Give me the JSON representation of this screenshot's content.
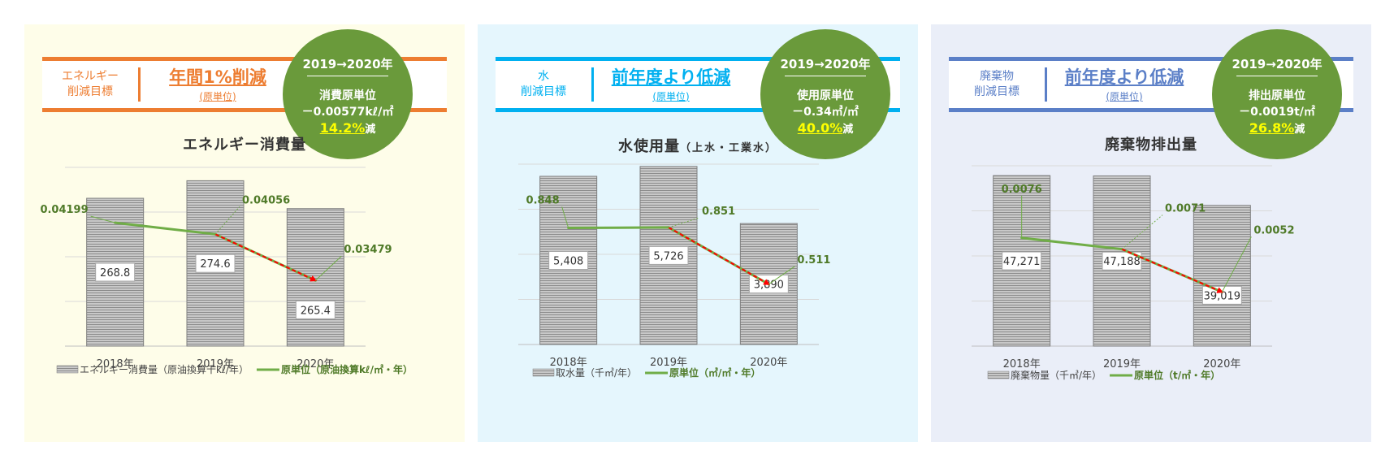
{
  "panels": [
    {
      "header": {
        "category": "エネルギー\n削減目標",
        "target": "年間1%削減",
        "unit_note": "(原単位)",
        "accent": "#ed7d31"
      },
      "circle": {
        "period": "2019→2020年",
        "label": "消費原単位",
        "value": "－0.00577kℓ/㎡",
        "percent": "14.2%",
        "reduced": "減"
      },
      "title": "エネルギー消費量",
      "title_sub": "",
      "bg": "#fefde9",
      "chart_data": {
        "type": "bar",
        "categories": [
          "2018年",
          "2019年",
          "2020年"
        ],
        "series": [
          {
            "name": "エネルギー消費量（原油換算千kℓ/年）",
            "type": "bar",
            "values": [
              268.8,
              274.6,
              265.4
            ],
            "labels": [
              "268.8",
              "274.6",
              "265.4"
            ]
          },
          {
            "name": "原単位（原油換算kℓ/㎡・年）",
            "type": "line",
            "values": [
              0.04199,
              0.04056,
              0.03479
            ],
            "labels": [
              "0.04199",
              "0.04056",
              "0.03479"
            ]
          }
        ],
        "grid": true,
        "legend": "bottom"
      }
    },
    {
      "header": {
        "category": "水\n削減目標",
        "target": "前年度より低減",
        "unit_note": "(原単位)",
        "accent": "#00b0f0"
      },
      "circle": {
        "period": "2019→2020年",
        "label": "使用原単位",
        "value": "－0.34㎥/㎡",
        "percent": "40.0%",
        "reduced": "減"
      },
      "title": "水使用量",
      "title_sub": "（上水・工業水）",
      "bg": "#e5f6fd",
      "chart_data": {
        "type": "bar",
        "categories": [
          "2018年",
          "2019年",
          "2020年"
        ],
        "series": [
          {
            "name": "取水量（千㎥/年）",
            "type": "bar",
            "values": [
              5408,
              5726,
              3890
            ],
            "labels": [
              "5,408",
              "5,726",
              "3,890"
            ]
          },
          {
            "name": "原単位（㎥/㎡・年）",
            "type": "line",
            "values": [
              0.848,
              0.851,
              0.511
            ],
            "labels": [
              "0.848",
              "0.851",
              "0.511"
            ]
          }
        ],
        "grid": true,
        "legend": "bottom"
      }
    },
    {
      "header": {
        "category": "廃棄物\n削減目標",
        "target": "前年度より低減",
        "unit_note": "(原単位)",
        "accent": "#5b7fc7"
      },
      "circle": {
        "period": "2019→2020年",
        "label": "排出原単位",
        "value": "－0.0019t/㎡",
        "percent": "26.8%",
        "reduced": "減"
      },
      "title": "廃棄物排出量",
      "title_sub": "",
      "bg": "#eaeef8",
      "chart_data": {
        "type": "bar",
        "categories": [
          "2018年",
          "2019年",
          "2020年"
        ],
        "series": [
          {
            "name": "廃棄物量（千㎥/年）",
            "type": "bar",
            "values": [
              47271,
              47188,
              39019
            ],
            "labels": [
              "47,271",
              "47,188",
              "39,019"
            ]
          },
          {
            "name": "原単位（t/㎡・年）",
            "type": "line",
            "values": [
              0.0076,
              0.0071,
              0.0052
            ],
            "labels": [
              "0.0076",
              "0.0071",
              "0.0052"
            ]
          }
        ],
        "grid": true,
        "legend": "bottom"
      }
    }
  ],
  "colors": {
    "line": "#70ad47",
    "label_text": "#4f7a28",
    "trend_arrow": "#ff0000",
    "circle": "#6a9a3b",
    "highlight": "#ffff00"
  }
}
